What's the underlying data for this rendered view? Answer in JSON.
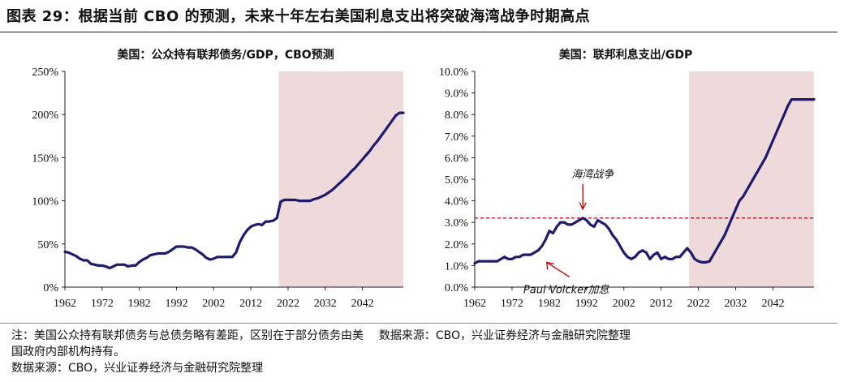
{
  "figure_title": "图表 29：根据当前 CBO 的预测，未来十年左右美国利息支出将突破海湾战争时期高点",
  "footnotes": {
    "note_line1": "注：美国公众持有联邦债务与总债务略有差距，区别在于部分债务由美",
    "source_inline": "数据来源：CBO，兴业证券经济与金融研究院整理",
    "note_line2": "国政府内部机构持有。",
    "source_line": "数据来源：CBO，兴业证券经济与金融研究院整理"
  },
  "colors": {
    "line": "#1f1a6e",
    "forecast_shade": "#efdadb",
    "reference_line": "#c00000",
    "arrow": "#c00000"
  },
  "chart_data": [
    {
      "type": "line",
      "title": "美国：公众持有联邦债务/GDP，CBO预测",
      "xlabel": "",
      "ylabel": "",
      "xlim": [
        1962,
        2053
      ],
      "ylim": [
        0,
        250
      ],
      "y_unit": "%",
      "xticks": [
        "1962",
        "1972",
        "1982",
        "1992",
        "2002",
        "2012",
        "2022",
        "2032",
        "2042"
      ],
      "yticks": [
        "0%",
        "50%",
        "100%",
        "150%",
        "200%",
        "250%"
      ],
      "grid": false,
      "legend": "none",
      "forecast_shading": {
        "x_start": 2019.5,
        "x_end": 2053
      },
      "series": [
        {
          "x": [
            1962,
            1963,
            1964,
            1965,
            1966,
            1967,
            1968,
            1969,
            1970,
            1971,
            1972,
            1973,
            1974,
            1975,
            1976,
            1977,
            1978,
            1979,
            1980,
            1981,
            1982,
            1983,
            1984,
            1985,
            1986,
            1987,
            1988,
            1989,
            1990,
            1991,
            1992,
            1993,
            1994,
            1995,
            1996,
            1997,
            1998,
            1999,
            2000,
            2001,
            2002,
            2003,
            2004,
            2005,
            2006,
            2007,
            2008,
            2009,
            2010,
            2011,
            2012,
            2013,
            2014,
            2015,
            2016,
            2017,
            2018,
            2019,
            2020,
            2021,
            2022,
            2023,
            2024,
            2025,
            2026,
            2027,
            2028,
            2029,
            2030,
            2031,
            2032,
            2033,
            2034,
            2035,
            2036,
            2037,
            2038,
            2039,
            2040,
            2041,
            2042,
            2043,
            2044,
            2045,
            2046,
            2047,
            2048,
            2049,
            2050,
            2051,
            2052,
            2053
          ],
          "values": [
            41,
            40,
            38,
            36,
            33,
            31,
            31,
            27,
            26,
            25,
            25,
            24,
            22,
            24,
            26,
            26,
            26,
            24,
            25,
            25,
            29,
            32,
            34,
            37,
            38,
            39,
            39,
            39,
            41,
            44,
            47,
            47,
            47,
            46,
            46,
            44,
            41,
            38,
            34,
            32,
            33,
            35,
            35,
            35,
            35,
            35,
            40,
            52,
            60,
            66,
            70,
            72,
            73,
            72,
            76,
            76,
            77,
            80,
            99,
            101,
            101,
            101,
            101,
            100,
            100,
            100,
            100,
            102,
            103,
            105,
            107,
            110,
            113,
            117,
            121,
            125,
            129,
            134,
            138,
            143,
            148,
            153,
            158,
            164,
            169,
            175,
            181,
            187,
            193,
            199,
            202,
            202
          ]
        }
      ]
    },
    {
      "type": "line",
      "title": "美国：联邦利息支出/GDP",
      "xlabel": "",
      "ylabel": "",
      "xlim": [
        1962,
        2053
      ],
      "ylim": [
        0,
        10
      ],
      "y_unit": "%",
      "xticks": [
        "1962",
        "1972",
        "1982",
        "1992",
        "2002",
        "2012",
        "2022",
        "2032",
        "2042"
      ],
      "yticks": [
        "0.0%",
        "1.0%",
        "2.0%",
        "3.0%",
        "4.0%",
        "5.0%",
        "6.0%",
        "7.0%",
        "8.0%",
        "9.0%",
        "10.0%"
      ],
      "grid": false,
      "legend": "none",
      "forecast_shading": {
        "x_start": 2019.5,
        "x_end": 2053
      },
      "reference_line": {
        "y": 3.2,
        "style": "dashed"
      },
      "annotations": [
        {
          "text": "海湾战争",
          "x": 1991,
          "y": 3.2,
          "position": "above"
        },
        {
          "text": "Paul Volcker加息",
          "x": 1980,
          "y": 1.6,
          "position": "below-right"
        }
      ],
      "series": [
        {
          "x": [
            1962,
            1963,
            1964,
            1965,
            1966,
            1967,
            1968,
            1969,
            1970,
            1971,
            1972,
            1973,
            1974,
            1975,
            1976,
            1977,
            1978,
            1979,
            1980,
            1981,
            1982,
            1983,
            1984,
            1985,
            1986,
            1987,
            1988,
            1989,
            1990,
            1991,
            1992,
            1993,
            1994,
            1995,
            1996,
            1997,
            1998,
            1999,
            2000,
            2001,
            2002,
            2003,
            2004,
            2005,
            2006,
            2007,
            2008,
            2009,
            2010,
            2011,
            2012,
            2013,
            2014,
            2015,
            2016,
            2017,
            2018,
            2019,
            2020,
            2021,
            2022,
            2023,
            2024,
            2025,
            2026,
            2027,
            2028,
            2029,
            2030,
            2031,
            2032,
            2033,
            2034,
            2035,
            2036,
            2037,
            2038,
            2039,
            2040,
            2041,
            2042,
            2043,
            2044,
            2045,
            2046,
            2047,
            2048,
            2049,
            2050,
            2051,
            2052,
            2053
          ],
          "values": [
            1.1,
            1.2,
            1.2,
            1.2,
            1.2,
            1.2,
            1.2,
            1.3,
            1.4,
            1.3,
            1.3,
            1.4,
            1.4,
            1.5,
            1.5,
            1.5,
            1.6,
            1.7,
            1.9,
            2.2,
            2.6,
            2.5,
            2.8,
            3.0,
            3.0,
            2.9,
            2.9,
            3.0,
            3.1,
            3.2,
            3.1,
            2.9,
            2.8,
            3.1,
            3.0,
            2.9,
            2.7,
            2.4,
            2.2,
            1.9,
            1.6,
            1.4,
            1.3,
            1.4,
            1.6,
            1.7,
            1.6,
            1.3,
            1.5,
            1.6,
            1.3,
            1.4,
            1.3,
            1.3,
            1.4,
            1.4,
            1.6,
            1.8,
            1.6,
            1.3,
            1.2,
            1.15,
            1.15,
            1.2,
            1.5,
            1.8,
            2.1,
            2.4,
            2.8,
            3.2,
            3.6,
            4.0,
            4.2,
            4.5,
            4.8,
            5.1,
            5.4,
            5.7,
            6.0,
            6.4,
            6.8,
            7.2,
            7.6,
            8.0,
            8.4,
            8.7,
            8.7,
            8.7,
            8.7,
            8.7,
            8.7,
            8.7
          ]
        }
      ]
    }
  ]
}
